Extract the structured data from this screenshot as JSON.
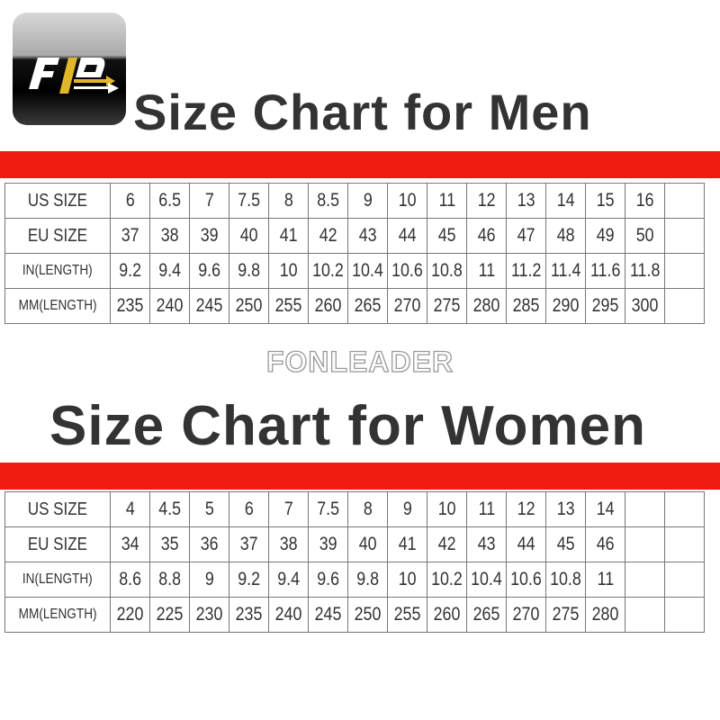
{
  "logo": {
    "text": "FLD",
    "colors": {
      "f": "#ffffff",
      "l": "#e2b62a",
      "d": "#ffffff"
    }
  },
  "men": {
    "title": "Size Chart for Men",
    "empty_columns": 1,
    "rows": [
      {
        "label": "US SIZE",
        "values": [
          "6",
          "6.5",
          "7",
          "7.5",
          "8",
          "8.5",
          "9",
          "10",
          "11",
          "12",
          "13",
          "14",
          "15",
          "16"
        ]
      },
      {
        "label": "EU SIZE",
        "values": [
          "37",
          "38",
          "39",
          "40",
          "41",
          "42",
          "43",
          "44",
          "45",
          "46",
          "47",
          "48",
          "49",
          "50"
        ]
      },
      {
        "label": "IN(LENGTH)",
        "values": [
          "9.2",
          "9.4",
          "9.6",
          "9.8",
          "10",
          "10.2",
          "10.4",
          "10.6",
          "10.8",
          "11",
          "11.2",
          "11.4",
          "11.6",
          "11.8"
        ]
      },
      {
        "label": "MM(LENGTH)",
        "values": [
          "235",
          "240",
          "245",
          "250",
          "255",
          "260",
          "265",
          "270",
          "275",
          "280",
          "285",
          "290",
          "295",
          "300"
        ]
      }
    ]
  },
  "watermark": "FONLEADER",
  "women": {
    "title": "Size Chart for Women",
    "empty_columns": 2,
    "rows": [
      {
        "label": "US SIZE",
        "values": [
          "4",
          "4.5",
          "5",
          "6",
          "7",
          "7.5",
          "8",
          "9",
          "10",
          "11",
          "12",
          "13",
          "14"
        ]
      },
      {
        "label": "EU SIZE",
        "values": [
          "34",
          "35",
          "36",
          "37",
          "38",
          "39",
          "40",
          "41",
          "42",
          "43",
          "44",
          "45",
          "46"
        ]
      },
      {
        "label": "IN(LENGTH)",
        "values": [
          "8.6",
          "8.8",
          "9",
          "9.2",
          "9.4",
          "9.6",
          "9.8",
          "10",
          "10.2",
          "10.4",
          "10.6",
          "10.8",
          "11"
        ]
      },
      {
        "label": "MM(LENGTH)",
        "values": [
          "220",
          "225",
          "230",
          "235",
          "240",
          "245",
          "250",
          "255",
          "260",
          "265",
          "270",
          "275",
          "280"
        ]
      }
    ]
  },
  "colors": {
    "accent_bar": "#f01a10",
    "text": "#333333"
  }
}
